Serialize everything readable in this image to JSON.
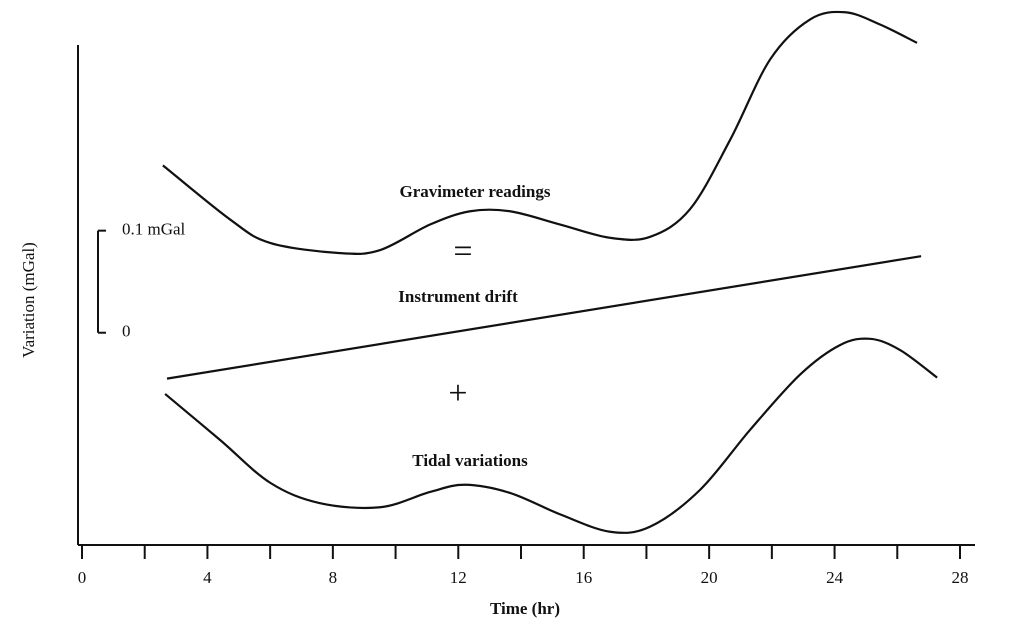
{
  "chart_data": {
    "type": "line",
    "xlabel": "Time (hr)",
    "ylabel": "Variation (mGal)",
    "xlim": [
      0,
      28
    ],
    "xticks": [
      0,
      4,
      8,
      12,
      16,
      20,
      24,
      28
    ],
    "xminorticks": [
      2,
      6,
      10,
      14,
      18,
      22,
      26
    ],
    "ylim": [
      -0.208,
      0.326
    ],
    "yticks": [
      {
        "value": 0.1,
        "label": "0.1 mGal"
      },
      0
    ],
    "annotations": [
      "=",
      "+"
    ],
    "series": [
      {
        "name": "Gravimeter readings",
        "color": "#111111",
        "x": [
          2.58,
          4.72,
          6.0,
          8.23,
          9.51,
          11.1,
          12.38,
          13.65,
          15.25,
          16.84,
          18.12,
          19.39,
          20.67,
          21.95,
          23.22,
          24.34,
          25.45,
          26.63
        ],
        "values": [
          0.164,
          0.111,
          0.088,
          0.078,
          0.081,
          0.106,
          0.119,
          0.119,
          0.106,
          0.093,
          0.094,
          0.121,
          0.189,
          0.268,
          0.307,
          0.314,
          0.302,
          0.284
        ]
      },
      {
        "name": "Instrument drift",
        "color": "#111111",
        "x": [
          2.71,
          26.76
        ],
        "values": [
          -0.045,
          0.075
        ]
      },
      {
        "name": "Tidal variations",
        "color": "#111111",
        "x": [
          2.65,
          4.4,
          6.0,
          7.59,
          9.51,
          11.1,
          12.22,
          13.65,
          15.25,
          16.84,
          18.12,
          19.71,
          21.31,
          22.9,
          24.18,
          25.14,
          26.09,
          27.27
        ],
        "values": [
          -0.06,
          -0.105,
          -0.147,
          -0.167,
          -0.171,
          -0.156,
          -0.149,
          -0.157,
          -0.178,
          -0.195,
          -0.19,
          -0.154,
          -0.095,
          -0.041,
          -0.012,
          -0.006,
          -0.017,
          -0.044
        ]
      }
    ]
  }
}
